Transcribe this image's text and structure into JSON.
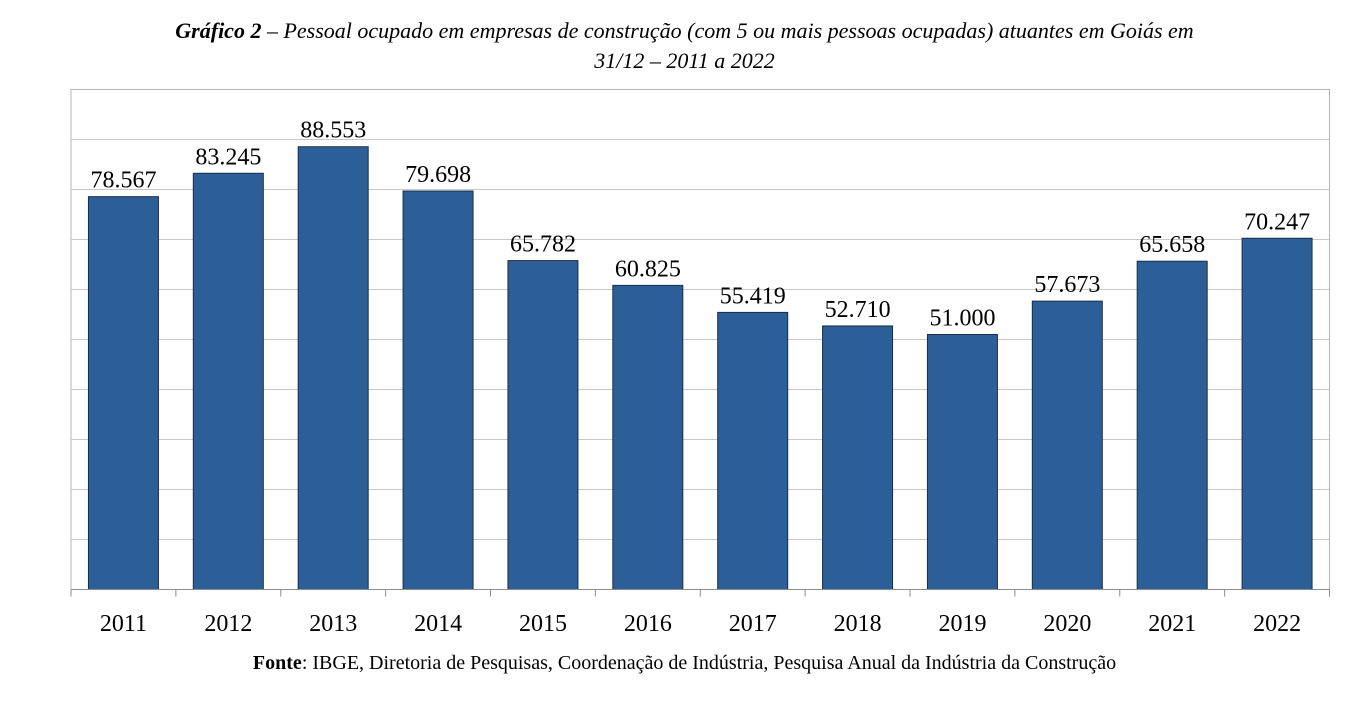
{
  "title": {
    "label": "Gráfico 2",
    "separator": " – ",
    "line1": "Pessoal ocupado em empresas de construção (com 5 ou mais pessoas ocupadas) atuantes em Goiás em",
    "line2": "31/12 – 2011 a 2022"
  },
  "source": {
    "label": "Fonte",
    "text": ": IBGE, Diretoria de Pesquisas, Coordenação de Indústria, Pesquisa Anual da Indústria da Construção"
  },
  "chart_data": {
    "type": "bar",
    "categories": [
      "2011",
      "2012",
      "2013",
      "2014",
      "2015",
      "2016",
      "2017",
      "2018",
      "2019",
      "2020",
      "2021",
      "2022"
    ],
    "values": [
      78567,
      83245,
      88553,
      79698,
      65782,
      60825,
      55419,
      52710,
      51000,
      57673,
      65658,
      70247
    ],
    "value_labels": [
      "78.567",
      "83.245",
      "88.553",
      "79.698",
      "65.782",
      "60.825",
      "55.419",
      "52.710",
      "51.000",
      "57.673",
      "65.658",
      "70.247"
    ],
    "ylim": [
      0,
      100000
    ],
    "y_gridline_step": 10000,
    "grid": true,
    "y_axis_labels_shown": false,
    "legend": "none",
    "bar_color": "#2c5f98",
    "bar_edge_color": "#1a2e4a",
    "grid_color": "#c8c8c8",
    "frame_color": "#b4b4b4"
  }
}
